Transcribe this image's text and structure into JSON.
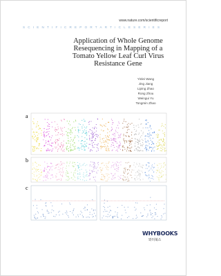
{
  "header": {
    "url": "www.nature.com/scientificreport",
    "series": "SCIENTIFICREPORTARTICLESERIES"
  },
  "title_lines": [
    "Application of Whole Genome",
    "Resequencing in Mapping of a",
    "Tomato Yellow Leaf Curl Virus",
    "Resistance Gene"
  ],
  "authors": [
    "Yinlei Wang",
    "Jing Jiang",
    "Liping Zhao",
    "Rong Zhou",
    "Weingui Yu",
    "Tongmin Zhao"
  ],
  "figure": {
    "panel_labels": [
      "a",
      "b",
      "c"
    ]
  },
  "publisher": {
    "name": "WHYBOOKS",
    "subname": "와이북스"
  }
}
